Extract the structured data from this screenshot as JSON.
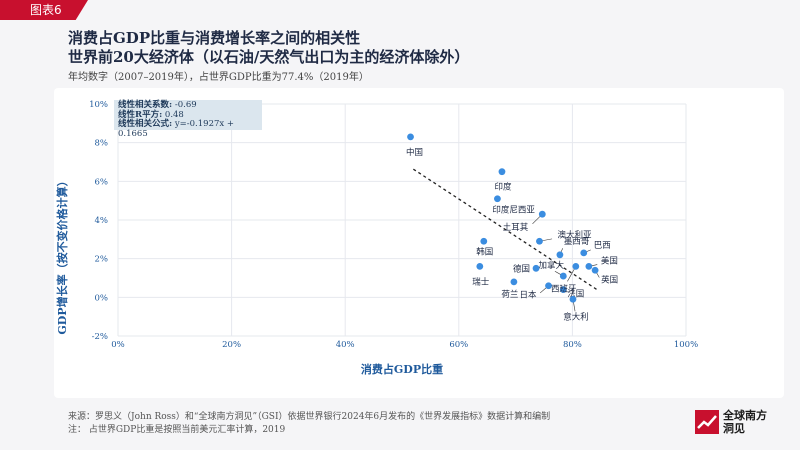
{
  "figure_tag": "图表6",
  "title_line1": "消费占GDP比重与消费增长率之间的相关性",
  "title_line2": "世界前20大经济体（以石油/天然气出口为主的经济体除外）",
  "subtitle": "年均数字（2007–2019年），占世界GDP比重为77.4%（2019年）",
  "stats": {
    "correlation_label": "线性相关系数:",
    "correlation_value": "-0.69",
    "r2_label": "线性R平方:",
    "r2_value": "0.48",
    "formula_label": "线性相关公式:",
    "formula_value": "y=-0.1927x + 0.1665"
  },
  "footer": {
    "source": "来源：罗思义（John Ross）和“全球南方洞见”（GSI）依据世界银行2024年6月发布的《世界发展指标》数据计算和编制",
    "note": "注：   占世界GDP比重是按照当前美元汇率计算，2019"
  },
  "logo": {
    "line1": "全球南方",
    "line2": "洞见"
  },
  "colors": {
    "accent": "#c8102e",
    "point": "#3b8de0",
    "title": "#1f2a44",
    "axis_label": "#1f5a9c"
  },
  "chart_data": {
    "type": "scatter",
    "title": "",
    "xlabel": "消费占GDP比重",
    "ylabel": "GDP增长率（按不变价格计算）",
    "xlim": [
      0,
      100
    ],
    "ylim": [
      -2,
      10
    ],
    "xticks": [
      0,
      20,
      40,
      60,
      80,
      100
    ],
    "yticks": [
      -2,
      0,
      2,
      4,
      6,
      8,
      10
    ],
    "xtick_labels": [
      "0%",
      "20%",
      "40%",
      "60%",
      "80%",
      "100%"
    ],
    "ytick_labels": [
      "-2%",
      "0%",
      "2%",
      "4%",
      "6%",
      "8%",
      "10%"
    ],
    "grid": true,
    "trendline": {
      "slope": -0.1927,
      "intercept": 0.1665,
      "x_range": [
        52,
        84.5
      ]
    },
    "points": [
      {
        "name": "中国",
        "x": 51.5,
        "y": 8.3
      },
      {
        "name": "印度",
        "x": 67.6,
        "y": 6.5
      },
      {
        "name": "印度尼西亚",
        "x": 66.8,
        "y": 5.1
      },
      {
        "name": "土耳其",
        "x": 74.7,
        "y": 4.3
      },
      {
        "name": "澳大利亚",
        "x": 74.2,
        "y": 2.9
      },
      {
        "name": "墨西哥",
        "x": 77.8,
        "y": 2.2
      },
      {
        "name": "巴西",
        "x": 82.0,
        "y": 2.3
      },
      {
        "name": "美国",
        "x": 82.9,
        "y": 1.6
      },
      {
        "name": "英国",
        "x": 84.0,
        "y": 1.4
      },
      {
        "name": "加拿大",
        "x": 78.4,
        "y": 1.1
      },
      {
        "name": "德国",
        "x": 73.6,
        "y": 1.5
      },
      {
        "name": "韩国",
        "x": 64.4,
        "y": 2.9
      },
      {
        "name": "瑞士",
        "x": 63.7,
        "y": 1.6
      },
      {
        "name": "荷兰",
        "x": 69.7,
        "y": 0.8
      },
      {
        "name": "日本",
        "x": 75.8,
        "y": 0.6
      },
      {
        "name": "法国",
        "x": 78.4,
        "y": 0.4
      },
      {
        "name": "西班牙",
        "x": 80.6,
        "y": 1.6
      },
      {
        "name": "意大利",
        "x": 80.1,
        "y": -0.1
      }
    ]
  }
}
